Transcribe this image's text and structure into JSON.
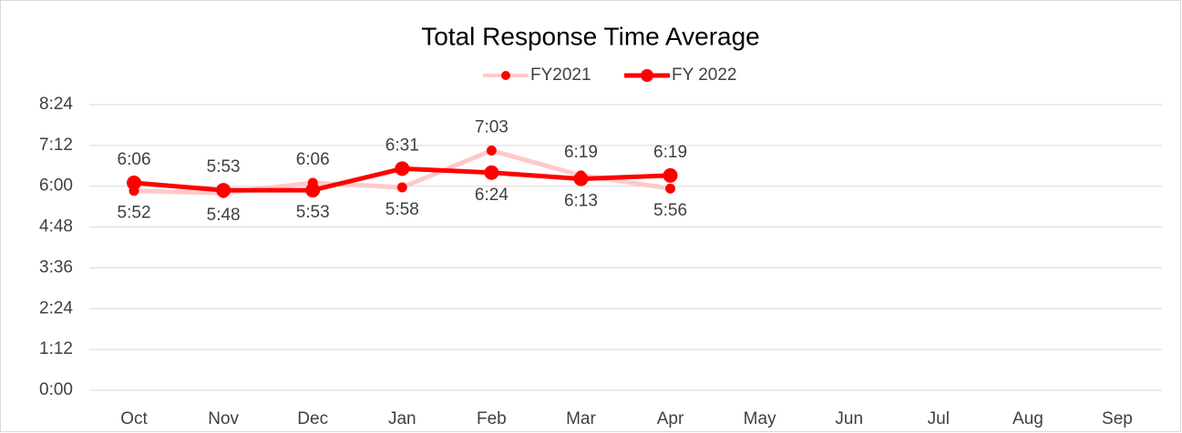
{
  "chart_data": {
    "type": "line",
    "title": "Total Response Time Average",
    "categories": [
      "Oct",
      "Nov",
      "Dec",
      "Jan",
      "Feb",
      "Mar",
      "Apr",
      "May",
      "Jun",
      "Jul",
      "Aug",
      "Sep"
    ],
    "series": [
      {
        "name": "FY2021",
        "color": "#ffc9c9",
        "marker_color": "#ff0000",
        "values": [
          352,
          348,
          366,
          358,
          423,
          379,
          356,
          null,
          null,
          null,
          null,
          null
        ],
        "value_labels": [
          "5:52",
          "5:48",
          "6:06",
          "5:58",
          "7:03",
          "6:19",
          "5:56",
          null,
          null,
          null,
          null,
          null
        ]
      },
      {
        "name": "FY 2022",
        "color": "#ff0000",
        "marker_color": "#ff0000",
        "values": [
          366,
          353,
          353,
          391,
          384,
          373,
          379,
          null,
          null,
          null,
          null,
          null
        ],
        "value_labels": [
          "6:06",
          "5:53",
          "5:53",
          "6:31",
          "6:24",
          "6:13",
          "6:19",
          null,
          null,
          null,
          null,
          null
        ]
      }
    ],
    "ylim": [
      0,
      504
    ],
    "yticks": [
      {
        "value": 0,
        "label": "0:00"
      },
      {
        "value": 72,
        "label": "1:12"
      },
      {
        "value": 144,
        "label": "2:24"
      },
      {
        "value": 216,
        "label": "3:36"
      },
      {
        "value": 288,
        "label": "4:48"
      },
      {
        "value": 360,
        "label": "6:00"
      },
      {
        "value": 432,
        "label": "7:12"
      },
      {
        "value": 504,
        "label": "8:24"
      }
    ],
    "grid": true,
    "legend": "top"
  }
}
